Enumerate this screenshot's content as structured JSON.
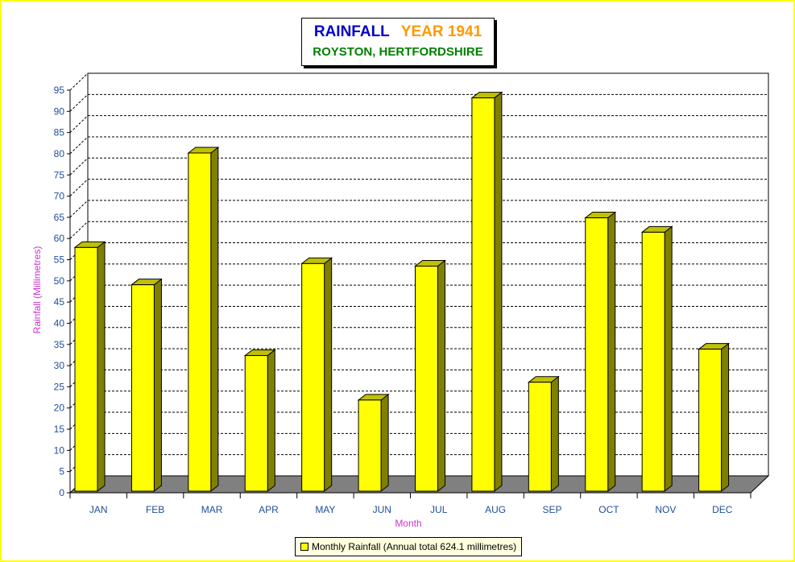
{
  "chart_data": {
    "type": "bar",
    "title": "RAINFALL",
    "title_year": "YEAR 1941",
    "subtitle": "ROYSTON, HERTFORDSHIRE",
    "xlabel": "Month",
    "ylabel": "Rainfall  (Millimetres)",
    "categories": [
      "JAN",
      "FEB",
      "MAR",
      "APR",
      "MAY",
      "JUN",
      "JUL",
      "AUG",
      "SEP",
      "OCT",
      "NOV",
      "DEC"
    ],
    "series": [
      {
        "name": "Monthly Rainfall (Annual total 624.1 millimetres)",
        "values": [
          57.5,
          48.7,
          79.8,
          32.0,
          53.7,
          21.5,
          53.1,
          92.8,
          25.7,
          64.5,
          61.1,
          33.5
        ]
      }
    ],
    "ylim": [
      0,
      95
    ],
    "yticks": [
      0,
      5,
      10,
      15,
      20,
      25,
      30,
      35,
      40,
      45,
      50,
      55,
      60,
      65,
      70,
      75,
      80,
      85,
      90,
      95
    ],
    "grid": true,
    "legend_position": "bottom",
    "colors": {
      "bar_front": "#ffff00",
      "bar_side": "#808000",
      "bar_top": "#c0c000",
      "floor": "#808080",
      "axis_text": "#1f4e99",
      "label_text": "#cc33cc",
      "title": "#0000cc",
      "year": "#ff9900",
      "subtitle": "#008000",
      "background": "#ffffff",
      "border": "#ffff99"
    }
  }
}
